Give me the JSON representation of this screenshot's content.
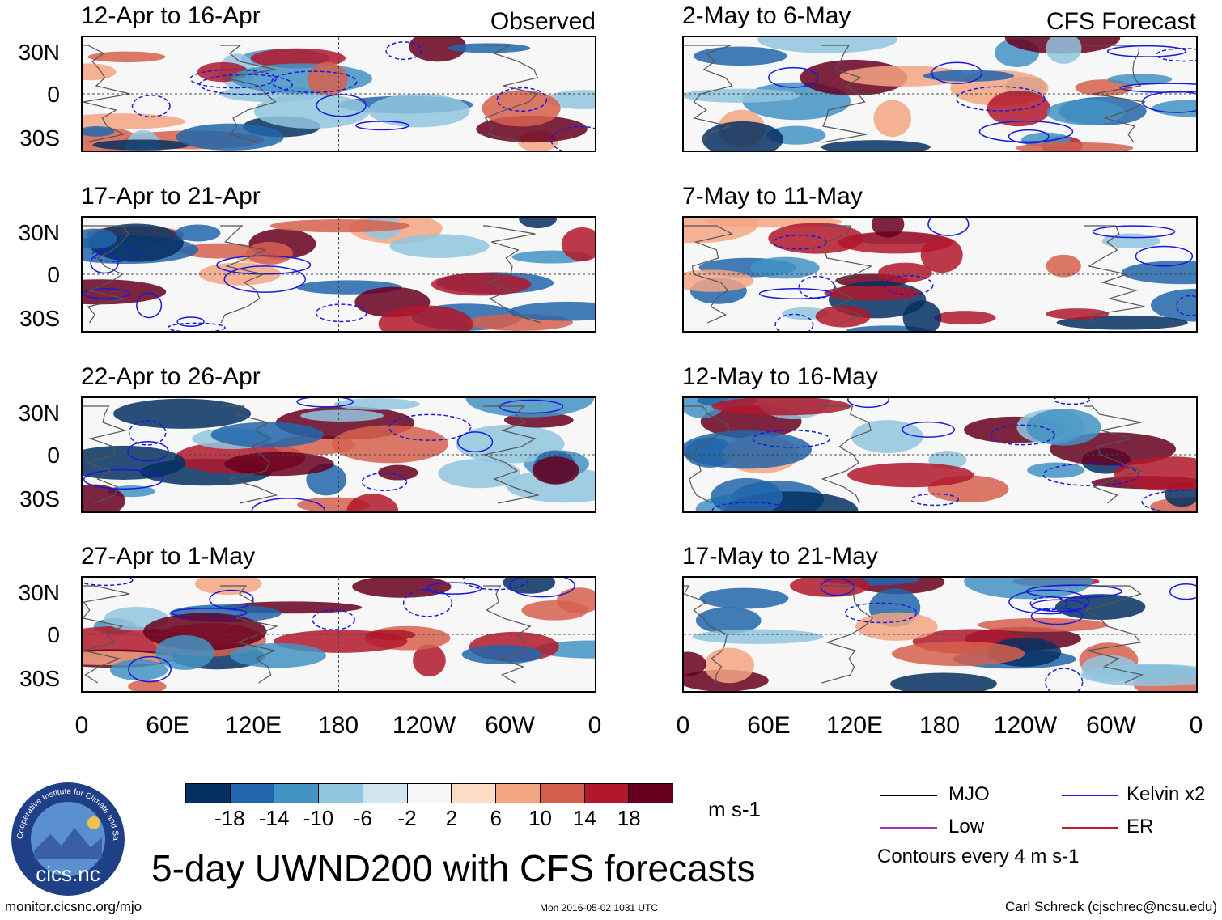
{
  "columns": {
    "left_label": "Observed",
    "right_label": "CFS Forecast"
  },
  "panels": {
    "left": [
      {
        "title": "12-Apr to 16-Apr"
      },
      {
        "title": "17-Apr to 21-Apr"
      },
      {
        "title": "22-Apr to 26-Apr"
      },
      {
        "title": "27-Apr to 1-May"
      }
    ],
    "right": [
      {
        "title": "2-May to 6-May"
      },
      {
        "title": "7-May to 11-May"
      },
      {
        "title": "12-May to 16-May"
      },
      {
        "title": "17-May to 21-May"
      }
    ]
  },
  "axes": {
    "lat": [
      "30N",
      "0",
      "30S"
    ],
    "lon": [
      "0",
      "60E",
      "120E",
      "180",
      "120W",
      "60W",
      "0"
    ]
  },
  "colorbar": {
    "labels": [
      "-18",
      "-14",
      "-10",
      "-6",
      "-2",
      "2",
      "6",
      "10",
      "14",
      "18"
    ],
    "colors": [
      "#053061",
      "#2166ac",
      "#4393c3",
      "#92c5de",
      "#d1e5f0",
      "#f7f7f7",
      "#fddbc7",
      "#f4a582",
      "#d6604d",
      "#b2182b",
      "#67001f"
    ],
    "unit": "m s-1"
  },
  "legend": {
    "items": [
      {
        "label": "MJO",
        "color": "#000000"
      },
      {
        "label": "Kelvin x2",
        "color": "#1a1adb"
      },
      {
        "label": "Low",
        "color": "#9933cc"
      },
      {
        "label": "ER",
        "color": "#cc1a1a"
      }
    ],
    "note": "Contours every 4 m s-1"
  },
  "logo": {
    "text": "cics.nc",
    "ring_text": "Cooperative Institute for Climate and Satellites"
  },
  "title": "5-day UWND200 with CFS forecasts",
  "footer": {
    "left": "monitor.cicsnc.org/mjo",
    "center": "Mon 2016-05-02 1031 UTC",
    "right": "Carl Schreck (cjschrec@ncsu.edu)"
  }
}
